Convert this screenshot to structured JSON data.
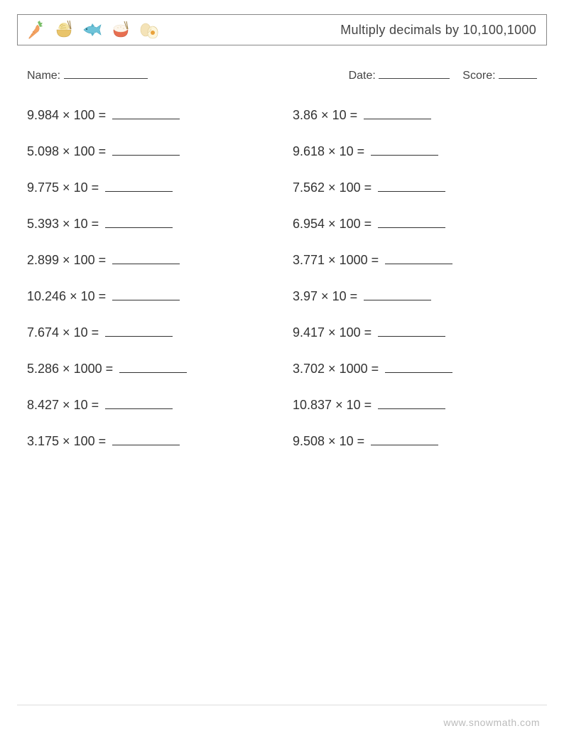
{
  "header": {
    "title": "Multiply decimals by 10,100,1000",
    "icons": [
      "carrot",
      "noodle-bowl",
      "fish",
      "rice-bowl",
      "eggs"
    ]
  },
  "info": {
    "name_label": "Name:",
    "date_label": "Date:",
    "score_label": "Score:",
    "blank_widths": {
      "name": 118,
      "date": 100,
      "score": 54
    }
  },
  "problems": {
    "left": [
      {
        "a": "9.984",
        "b": "100"
      },
      {
        "a": "5.098",
        "b": "100"
      },
      {
        "a": "9.775",
        "b": "10"
      },
      {
        "a": "5.393",
        "b": "10"
      },
      {
        "a": "2.899",
        "b": "100"
      },
      {
        "a": "10.246",
        "b": "10"
      },
      {
        "a": "7.674",
        "b": "10"
      },
      {
        "a": "5.286",
        "b": "1000"
      },
      {
        "a": "8.427",
        "b": "10"
      },
      {
        "a": "3.175",
        "b": "100"
      }
    ],
    "right": [
      {
        "a": "3.86",
        "b": "10"
      },
      {
        "a": "9.618",
        "b": "10"
      },
      {
        "a": "7.562",
        "b": "100"
      },
      {
        "a": "6.954",
        "b": "100"
      },
      {
        "a": "3.771",
        "b": "1000"
      },
      {
        "a": "3.97",
        "b": "10"
      },
      {
        "a": "9.417",
        "b": "100"
      },
      {
        "a": "3.702",
        "b": "1000"
      },
      {
        "a": "10.837",
        "b": "10"
      },
      {
        "a": "9.508",
        "b": "10"
      }
    ]
  },
  "footer": {
    "url": "www.snowmath.com"
  },
  "colors": {
    "carrot_body": "#f4a261",
    "carrot_leaf": "#7bbf6a",
    "bowl1": "#e9c46a",
    "fish": "#6ec3d9",
    "bowl2": "#e76f51",
    "egg": "#f4d79a",
    "egg_yolk": "#e9a23b"
  }
}
